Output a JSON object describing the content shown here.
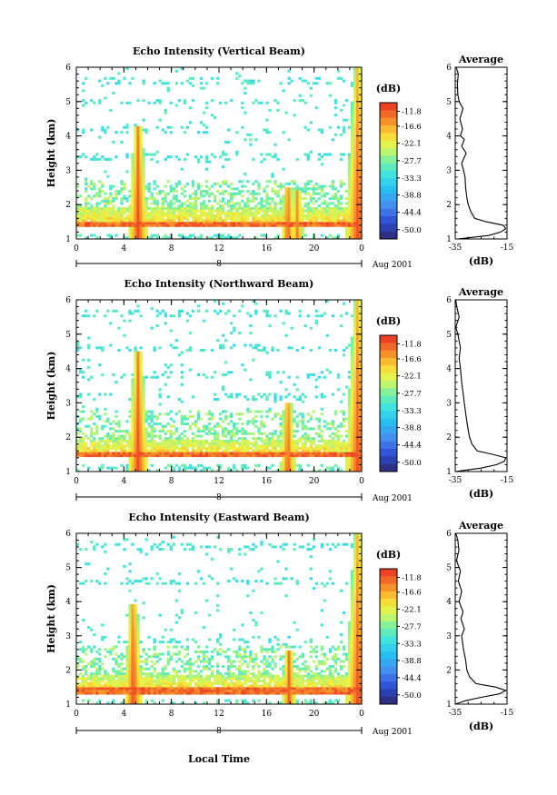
{
  "chart_data": [
    {
      "type": "heatmap",
      "title": "Echo Intensity (Vertical Beam)",
      "ylabel": "Height (km)",
      "xlim": [
        0,
        24
      ],
      "ylim": [
        1,
        6
      ],
      "x_ticks": [
        "0",
        "4",
        "8",
        "12",
        "16",
        "20",
        "0"
      ],
      "y_ticks": [
        "1",
        "2",
        "3",
        "4",
        "5",
        "6"
      ],
      "date_labels": [
        "8"
      ],
      "date_note": "Aug 2001",
      "colorbar": {
        "unit": "(dB)",
        "range": [
          -53,
          -9
        ],
        "labels": [
          "-11.8",
          "-16.6",
          "-22.1",
          "-27.7",
          "-33.3",
          "-38.8",
          "-44.4",
          "-50.0"
        ]
      },
      "features": {
        "surface_layer_km": 1.45,
        "plumes": [
          {
            "time_h": 5.2,
            "top_km": 4.3,
            "peak_db": -11
          },
          {
            "time_h": 17.8,
            "top_km": 2.5,
            "peak_db": -12
          },
          {
            "time_h": 18.6,
            "top_km": 2.4,
            "peak_db": -14
          },
          {
            "time_h": 23.7,
            "top_km": 6.0,
            "peak_db": -11
          }
        ],
        "sparse_layers_km": [
          3.4,
          4.2,
          5.0,
          5.6
        ]
      },
      "profile": {
        "title": "Average",
        "xlabel": "(dB)",
        "x_ticks": [
          "-35",
          "-15"
        ],
        "xlim": [
          -35,
          -15
        ],
        "y_ticks": [
          "1",
          "2",
          "3",
          "4",
          "5",
          "6"
        ],
        "height_km": [
          1.0,
          1.1,
          1.2,
          1.3,
          1.4,
          1.5,
          1.6,
          1.8,
          2.0,
          2.2,
          2.5,
          2.8,
          3.0,
          3.2,
          3.5,
          3.7,
          3.9,
          4.0,
          4.2,
          4.5,
          4.8,
          5.0,
          5.2,
          5.5,
          5.8,
          6.0
        ],
        "value_db": [
          -34.0,
          -22.0,
          -17.5,
          -15.5,
          -16.5,
          -23.0,
          -27.5,
          -29.0,
          -30.0,
          -30.5,
          -31.0,
          -31.2,
          -31.8,
          -32.5,
          -30.8,
          -32.5,
          -31.5,
          -33.0,
          -32.2,
          -33.2,
          -32.0,
          -33.5,
          -34.0,
          -34.2,
          -33.8,
          -34.6
        ]
      }
    },
    {
      "type": "heatmap",
      "title": "Echo Intensity (Northward Beam)",
      "ylabel": "Height (km)",
      "xlim": [
        0,
        24
      ],
      "ylim": [
        1,
        6
      ],
      "x_ticks": [
        "0",
        "4",
        "8",
        "12",
        "16",
        "20",
        "0"
      ],
      "y_ticks": [
        "1",
        "2",
        "3",
        "4",
        "5",
        "6"
      ],
      "date_labels": [
        "8"
      ],
      "date_note": "Aug 2001",
      "colorbar": {
        "unit": "(dB)",
        "range": [
          -53,
          -9
        ],
        "labels": [
          "-11.8",
          "-16.6",
          "-22.1",
          "-27.7",
          "-33.3",
          "-38.8",
          "-44.4",
          "-50.0"
        ]
      },
      "features": {
        "surface_layer_km": 1.5,
        "plumes": [
          {
            "time_h": 5.2,
            "top_km": 4.5,
            "peak_db": -11
          },
          {
            "time_h": 17.8,
            "top_km": 3.0,
            "peak_db": -12
          },
          {
            "time_h": 23.7,
            "top_km": 6.0,
            "peak_db": -11
          }
        ],
        "sparse_layers_km": [
          2.7,
          3.2,
          3.8,
          4.6,
          5.6
        ]
      },
      "profile": {
        "title": "Average",
        "xlabel": "(dB)",
        "x_ticks": [
          "-35",
          "-15"
        ],
        "xlim": [
          -35,
          -15
        ],
        "y_ticks": [
          "1",
          "2",
          "3",
          "4",
          "5",
          "6"
        ],
        "height_km": [
          1.0,
          1.1,
          1.2,
          1.3,
          1.4,
          1.5,
          1.6,
          1.8,
          2.0,
          2.3,
          2.6,
          3.0,
          3.3,
          3.6,
          4.0,
          4.3,
          4.6,
          5.0,
          5.2,
          5.5,
          5.8,
          6.0
        ],
        "value_db": [
          -35.0,
          -25.0,
          -19.0,
          -16.0,
          -15.5,
          -20.5,
          -26.5,
          -28.5,
          -29.5,
          -30.2,
          -30.8,
          -31.5,
          -32.0,
          -32.5,
          -33.0,
          -33.5,
          -33.0,
          -34.0,
          -34.8,
          -33.5,
          -34.4,
          -34.8
        ]
      }
    },
    {
      "type": "heatmap",
      "title": "Echo Intensity (Eastward Beam)",
      "ylabel": "Height (km)",
      "xlabel": "Local Time",
      "xlim": [
        0,
        24
      ],
      "ylim": [
        1,
        6
      ],
      "x_ticks": [
        "0",
        "4",
        "8",
        "12",
        "16",
        "20",
        "0"
      ],
      "y_ticks": [
        "1",
        "2",
        "3",
        "4",
        "5",
        "6"
      ],
      "date_labels": [
        "8"
      ],
      "date_note": "Aug 2001",
      "colorbar": {
        "unit": "(dB)",
        "range": [
          -53,
          -9
        ],
        "labels": [
          "-11.8",
          "-16.6",
          "-22.1",
          "-27.7",
          "-33.3",
          "-38.8",
          "-44.4",
          "-50.0"
        ]
      },
      "features": {
        "surface_layer_km": 1.4,
        "plumes": [
          {
            "time_h": 4.8,
            "top_km": 3.9,
            "peak_db": -11
          },
          {
            "time_h": 17.9,
            "top_km": 2.6,
            "peak_db": -12
          },
          {
            "time_h": 23.7,
            "top_km": 6.0,
            "peak_db": -11
          }
        ],
        "sparse_layers_km": [
          2.2,
          2.9,
          4.6,
          5.6
        ]
      },
      "profile": {
        "title": "Average",
        "xlabel": "(dB)",
        "x_ticks": [
          "-35",
          "-15"
        ],
        "xlim": [
          -35,
          -15
        ],
        "y_ticks": [
          "1",
          "2",
          "3",
          "4",
          "5",
          "6"
        ],
        "height_km": [
          1.0,
          1.1,
          1.2,
          1.3,
          1.4,
          1.5,
          1.6,
          1.8,
          2.0,
          2.3,
          2.6,
          3.0,
          3.2,
          3.5,
          3.7,
          4.0,
          4.3,
          4.6,
          4.9,
          5.2,
          5.5,
          5.8,
          6.0
        ],
        "value_db": [
          -35.0,
          -31.0,
          -25.0,
          -18.0,
          -15.5,
          -19.5,
          -27.0,
          -29.5,
          -30.5,
          -31.0,
          -31.8,
          -32.5,
          -31.5,
          -32.8,
          -32.0,
          -33.5,
          -32.5,
          -33.8,
          -33.0,
          -34.5,
          -33.6,
          -34.0,
          -34.8
        ]
      }
    }
  ]
}
